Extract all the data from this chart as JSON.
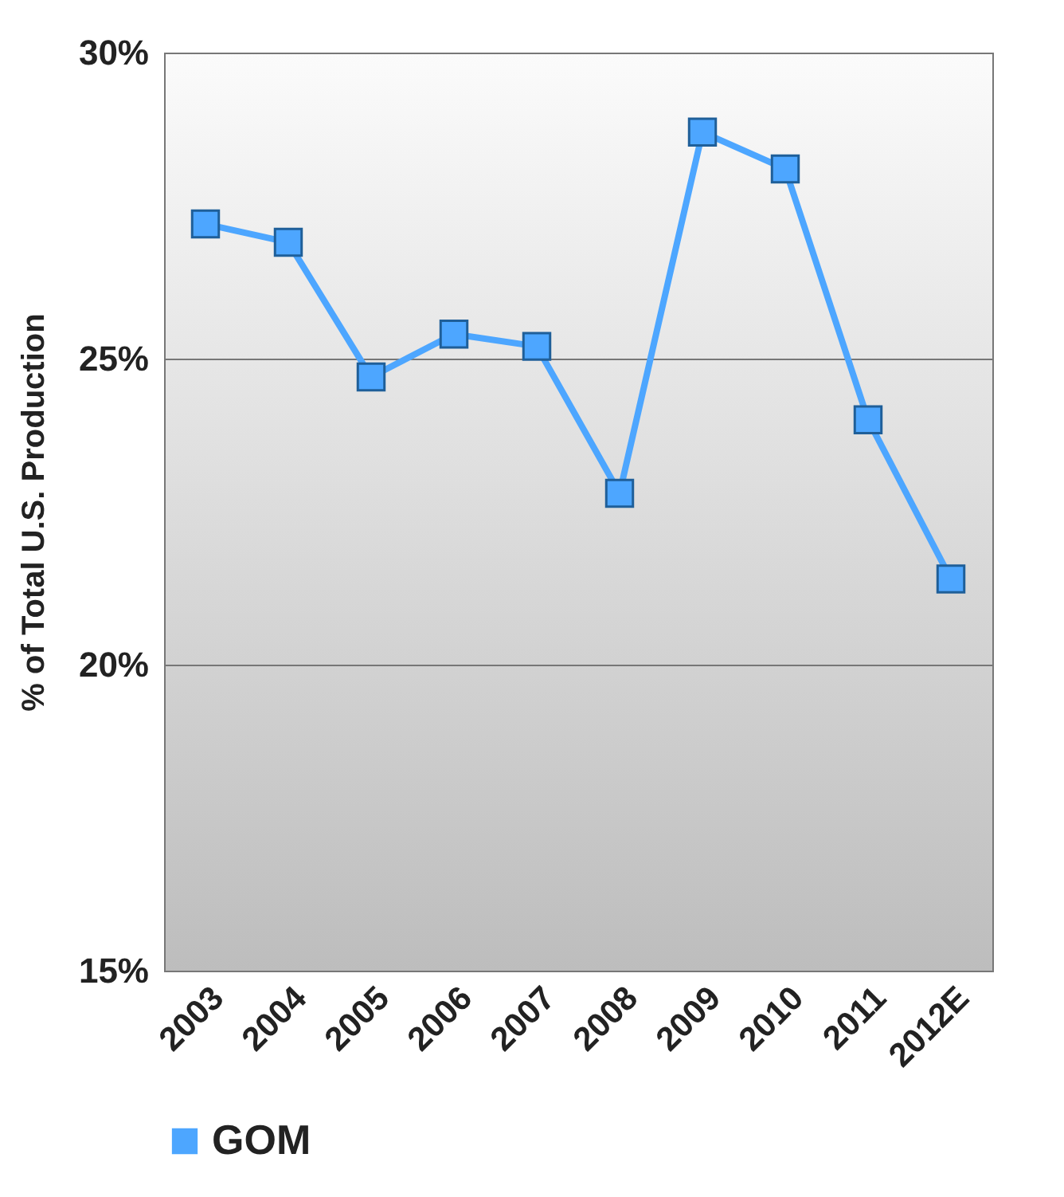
{
  "chart_data": {
    "type": "line",
    "ylabel": "% of Total U.S. Production",
    "categories": [
      "2003",
      "2004",
      "2005",
      "2006",
      "2007",
      "2008",
      "2009",
      "2010",
      "2011",
      "2012E"
    ],
    "series": [
      {
        "name": "GOM",
        "color": "#4da6ff",
        "values": [
          27.2,
          26.9,
          24.7,
          25.4,
          25.2,
          22.8,
          28.7,
          28.1,
          24.0,
          21.4
        ]
      }
    ],
    "ylim": [
      15,
      30
    ],
    "yticks": [
      {
        "value": 15,
        "label": "15%"
      },
      {
        "value": 20,
        "label": "20%"
      },
      {
        "value": 25,
        "label": "25%"
      },
      {
        "value": 30,
        "label": "30%"
      }
    ],
    "grid": "y",
    "legend": "bottom",
    "marker": "square",
    "line_style": "solid"
  }
}
